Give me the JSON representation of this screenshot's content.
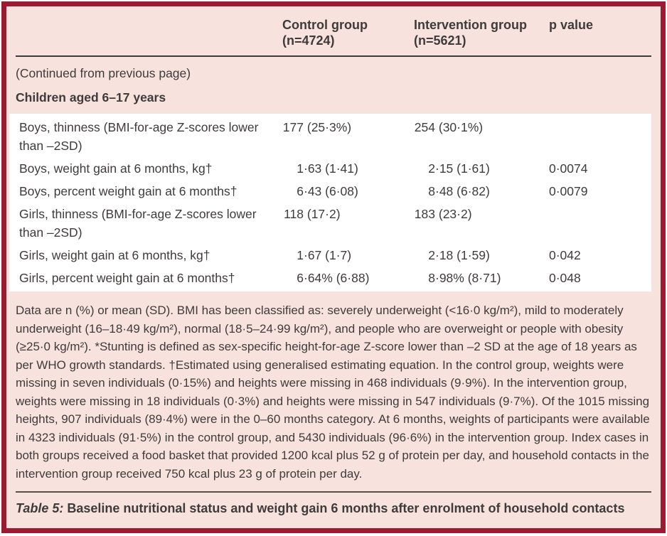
{
  "theme": {
    "border_color": "#9c1b33",
    "background_pink": "#f7e2dd",
    "row_background": "#ffffff",
    "text_color": "#3f3b3a",
    "rule_color": "#3c3c3c"
  },
  "table": {
    "header": {
      "control": {
        "title": "Control group",
        "n": "(n=4724)"
      },
      "intervention": {
        "title": "Intervention group",
        "n": "(n=5621)"
      },
      "pvalue": "p value"
    },
    "continued_note": "(Continued from previous page)",
    "section_title": "Children aged 6–17 years",
    "rows": [
      {
        "label": "Boys, thinness (BMI-for-age Z-scores lower than –2SD)",
        "control": "177 (25·3%)",
        "intervention": "254 (30·1%)",
        "p": ""
      },
      {
        "label": "Boys, weight gain at 6 months, kg†",
        "control": "1·63 (1·41)",
        "intervention": "2·15 (1·61)",
        "p": "0·0074"
      },
      {
        "label": "Boys, percent weight gain at 6 months†",
        "control": "6·43 (6·08)",
        "intervention": "8·48 (6·82)",
        "p": "0·0079"
      },
      {
        "label": "Girls, thinness (BMI-for-age Z-scores lower than –2SD)",
        "control": "118 (17·2)",
        "intervention": "183 (23·2)",
        "p": ""
      },
      {
        "label": "Girls, weight gain at 6 months, kg†",
        "control": "1·67 (1·7)",
        "intervention": "2·18 (1·59)",
        "p": "0·042"
      },
      {
        "label": "Girls, percent weight gain at 6 months†",
        "control": "6·64% (6·88)",
        "intervention": "8·98% (8·71)",
        "p": "0·048"
      }
    ],
    "footnote": "Data are n (%) or mean (SD). BMI has been classified as: severely underweight (<16·0 kg/m²), mild to moderately underweight (16–18·49 kg/m²), normal (18·5–24·99 kg/m²), and people who are overweight or people with obesity (≥25·0 kg/m²). *Stunting is defined as sex-specific height-for-age Z-score lower than –2 SD at the age of 18 years as per WHO growth standards. †Estimated using generalised estimating equation. In the control group, weights were missing in seven individuals (0·15%) and heights were missing in 468 individuals (9·9%). In the intervention group, weights were missing in 18 individuals (0·3%) and heights were missing in 547 individuals (9·7%). Of the 1015 missing heights, 907 individuals (89·4%) were in the 0–60 months category. At 6 months, weights of participants were available in 4323 individuals (91·5%) in the control group, and 5430 individuals (96·6%) in the intervention group. Index cases in both groups received a food basket that provided 1200 kcal plus 52 g of protein per day, and household contacts in the intervention group received 750 kcal plus 23 g of protein per day.",
    "caption": {
      "label": "Table 5:",
      "text": " Baseline nutritional status and weight gain 6 months after enrolment of household contacts"
    }
  }
}
